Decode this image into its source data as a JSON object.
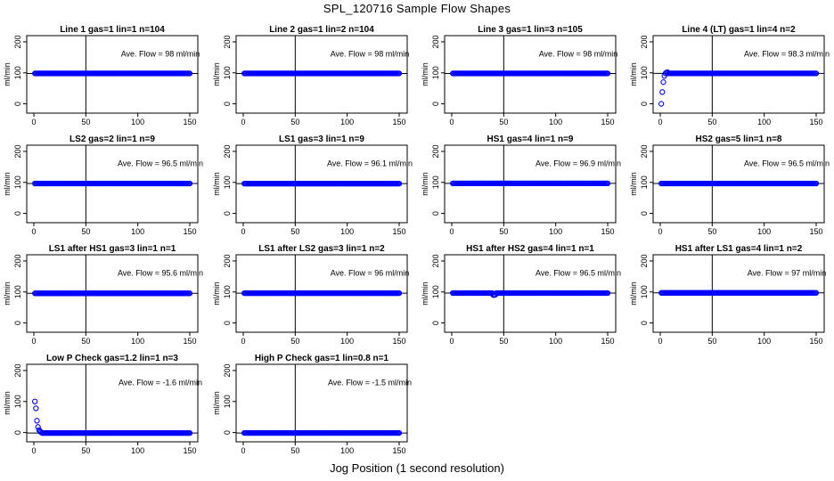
{
  "title": "SPL_120716  Sample Flow Shapes",
  "xlabel": "Jog Position (1 second resolution)",
  "colors": {
    "points": "#0000ff",
    "axes": "#000000"
  },
  "chart_data": [
    {
      "type": "scatter",
      "title": "Line 1 gas=1 lin=1 n=104",
      "ylabel": "ml/min",
      "annotation": "Ave. Flow =  98  ml/min",
      "xlim": [
        0,
        150
      ],
      "ylim": [
        -30,
        220
      ],
      "xticks": [
        0,
        50,
        100,
        150
      ],
      "yticks": [
        0,
        100,
        200
      ],
      "vline": 50,
      "hline": 98,
      "base": 98,
      "start": [],
      "dips": []
    },
    {
      "type": "scatter",
      "title": "Line 2 gas=1 lin=2 n=104",
      "ylabel": "ml/min",
      "annotation": "Ave. Flow =  98  ml/min",
      "xlim": [
        0,
        150
      ],
      "ylim": [
        -30,
        220
      ],
      "xticks": [
        0,
        50,
        100,
        150
      ],
      "yticks": [
        0,
        100,
        200
      ],
      "vline": 50,
      "hline": 98,
      "base": 98,
      "start": [],
      "dips": []
    },
    {
      "type": "scatter",
      "title": "Line 3 gas=1 lin=3 n=105",
      "ylabel": "ml/min",
      "annotation": "Ave. Flow =  98  ml/min",
      "xlim": [
        0,
        150
      ],
      "ylim": [
        -30,
        220
      ],
      "xticks": [
        0,
        50,
        100,
        150
      ],
      "yticks": [
        0,
        100,
        200
      ],
      "vline": 50,
      "hline": 98,
      "base": 98,
      "start": [],
      "dips": []
    },
    {
      "type": "scatter",
      "title": "Line 4 (LT) gas=1 lin=4 n=2",
      "ylabel": "ml/min",
      "annotation": "Ave. Flow =  98.3  ml/min",
      "xlim": [
        0,
        150
      ],
      "ylim": [
        -30,
        220
      ],
      "xticks": [
        0,
        50,
        100,
        150
      ],
      "yticks": [
        0,
        100,
        200
      ],
      "vline": 50,
      "hline": 98.3,
      "base": 98.3,
      "start": [
        [
          1,
          0
        ],
        [
          2,
          38
        ],
        [
          3,
          70
        ],
        [
          4,
          90
        ],
        [
          5,
          98
        ],
        [
          6,
          101
        ],
        [
          7,
          102
        ]
      ],
      "dips": []
    },
    {
      "type": "scatter",
      "title": "LS2 gas=2 lin=1 n=9",
      "ylabel": "ml/min",
      "annotation": "Ave. Flow =  96.5  ml/min",
      "xlim": [
        0,
        150
      ],
      "ylim": [
        -30,
        220
      ],
      "xticks": [
        0,
        50,
        100,
        150
      ],
      "yticks": [
        0,
        100,
        200
      ],
      "vline": 50,
      "hline": 96.5,
      "base": 96.5,
      "start": [],
      "dips": []
    },
    {
      "type": "scatter",
      "title": "LS1 gas=3 lin=1 n=9",
      "ylabel": "ml/min",
      "annotation": "Ave. Flow =  96.1  ml/min",
      "xlim": [
        0,
        150
      ],
      "ylim": [
        -30,
        220
      ],
      "xticks": [
        0,
        50,
        100,
        150
      ],
      "yticks": [
        0,
        100,
        200
      ],
      "vline": 50,
      "hline": 96.1,
      "base": 96.1,
      "start": [],
      "dips": []
    },
    {
      "type": "scatter",
      "title": "HS1 gas=4 lin=1 n=9",
      "ylabel": "ml/min",
      "annotation": "Ave. Flow =  96.9  ml/min",
      "xlim": [
        0,
        150
      ],
      "ylim": [
        -30,
        220
      ],
      "xticks": [
        0,
        50,
        100,
        150
      ],
      "yticks": [
        0,
        100,
        200
      ],
      "vline": 50,
      "hline": 96.9,
      "base": 96.9,
      "start": [],
      "dips": []
    },
    {
      "type": "scatter",
      "title": "HS2 gas=5 lin=1 n=8",
      "ylabel": "ml/min",
      "annotation": "Ave. Flow =  96.5  ml/min",
      "xlim": [
        0,
        150
      ],
      "ylim": [
        -30,
        220
      ],
      "xticks": [
        0,
        50,
        100,
        150
      ],
      "yticks": [
        0,
        100,
        200
      ],
      "vline": 50,
      "hline": 96.5,
      "base": 96.5,
      "start": [],
      "dips": []
    },
    {
      "type": "scatter",
      "title": "LS1 after HS1 gas=3 lin=1 n=1",
      "ylabel": "ml/min",
      "annotation": "Ave. Flow =  95.6  ml/min",
      "xlim": [
        0,
        150
      ],
      "ylim": [
        -30,
        220
      ],
      "xticks": [
        0,
        50,
        100,
        150
      ],
      "yticks": [
        0,
        100,
        200
      ],
      "vline": 50,
      "hline": 95.6,
      "base": 95.6,
      "start": [],
      "dips": []
    },
    {
      "type": "scatter",
      "title": "LS1 after LS2 gas=3 lin=1 n=2",
      "ylabel": "ml/min",
      "annotation": "Ave. Flow =  96  ml/min",
      "xlim": [
        0,
        150
      ],
      "ylim": [
        -30,
        220
      ],
      "xticks": [
        0,
        50,
        100,
        150
      ],
      "yticks": [
        0,
        100,
        200
      ],
      "vline": 50,
      "hline": 96,
      "base": 96,
      "start": [],
      "dips": []
    },
    {
      "type": "scatter",
      "title": "HS1 after HS2 gas=4 lin=1 n=1",
      "ylabel": "ml/min",
      "annotation": "Ave. Flow =  96.5  ml/min",
      "xlim": [
        0,
        150
      ],
      "ylim": [
        -30,
        220
      ],
      "xticks": [
        0,
        50,
        100,
        150
      ],
      "yticks": [
        0,
        100,
        200
      ],
      "vline": 50,
      "hline": 96.5,
      "base": 96.5,
      "start": [],
      "dips": [
        [
          40,
          90
        ],
        [
          41,
          90
        ],
        [
          42,
          91
        ]
      ]
    },
    {
      "type": "scatter",
      "title": "HS1 after LS1 gas=4 lin=1 n=2",
      "ylabel": "ml/min",
      "annotation": "Ave. Flow =  97  ml/min",
      "xlim": [
        0,
        150
      ],
      "ylim": [
        -30,
        220
      ],
      "xticks": [
        0,
        50,
        100,
        150
      ],
      "yticks": [
        0,
        100,
        200
      ],
      "vline": 50,
      "hline": 97,
      "base": 97,
      "start": [],
      "dips": []
    },
    {
      "type": "scatter",
      "title": "Low P Check gas=1.2 lin=1 n=3",
      "ylabel": "ml/min",
      "annotation": "Ave. Flow =  -1.6  ml/min",
      "xlim": [
        0,
        150
      ],
      "ylim": [
        -30,
        220
      ],
      "xticks": [
        0,
        50,
        100,
        150
      ],
      "yticks": [
        0,
        100,
        200
      ],
      "vline": 50,
      "hline": -1.6,
      "base": -1.6,
      "start": [
        [
          1,
          100
        ],
        [
          2,
          78
        ],
        [
          3,
          38
        ],
        [
          4,
          18
        ],
        [
          5,
          8
        ],
        [
          6,
          3
        ],
        [
          7,
          1
        ]
      ],
      "dips": []
    },
    {
      "type": "scatter",
      "title": "High P Check gas=1 lin=0.8 n=1",
      "ylabel": "ml/min",
      "annotation": "Ave. Flow =  -1.5  ml/min",
      "xlim": [
        0,
        150
      ],
      "ylim": [
        -30,
        220
      ],
      "xticks": [
        0,
        50,
        100,
        150
      ],
      "yticks": [
        0,
        100,
        200
      ],
      "vline": 50,
      "hline": -1.5,
      "base": -1.5,
      "start": [],
      "dips": []
    }
  ]
}
